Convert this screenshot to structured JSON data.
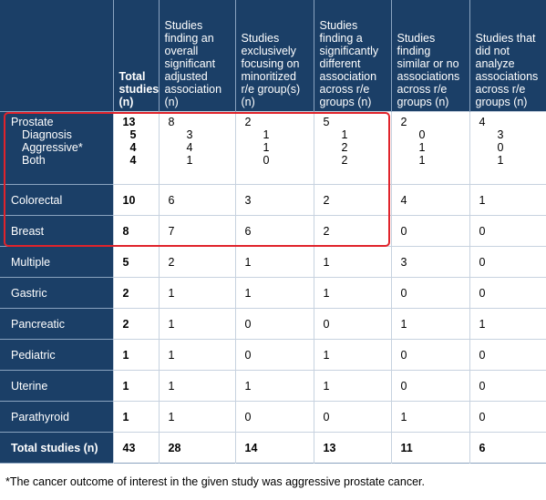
{
  "headers": [
    "",
    "Total studies (n)",
    "Studies finding an overall significant adjusted association (n)",
    "Studies exclusively focusing on minoritized r/e group(s) (n)",
    "Studies finding a significantly different association across r/e groups (n)",
    "Studies finding similar or no associations across r/e groups (n)",
    "Studies that did not analyze associations across r/e groups (n)"
  ],
  "prostate": {
    "label": "Prostate",
    "sub_labels": [
      "Diagnosis",
      "Aggressive*",
      "Both"
    ],
    "total": "13",
    "total_sub": [
      "5",
      "4",
      "4"
    ],
    "c2": "8",
    "c2_sub": [
      "3",
      "4",
      "1"
    ],
    "c3": "2",
    "c3_sub": [
      "1",
      "1",
      "0"
    ],
    "c4": "5",
    "c4_sub": [
      "1",
      "2",
      "2"
    ],
    "c5": "2",
    "c5_sub": [
      "0",
      "1",
      "1"
    ],
    "c6": "4",
    "c6_sub": [
      "3",
      "0",
      "1"
    ]
  },
  "rows": [
    {
      "label": "Colorectal",
      "total": "10",
      "c2": "6",
      "c3": "3",
      "c4": "2",
      "c5": "4",
      "c6": "1"
    },
    {
      "label": "Breast",
      "total": "8",
      "c2": "7",
      "c3": "6",
      "c4": "2",
      "c5": "0",
      "c6": "0"
    },
    {
      "label": "Multiple",
      "total": "5",
      "c2": "2",
      "c3": "1",
      "c4": "1",
      "c5": "3",
      "c6": "0"
    },
    {
      "label": "Gastric",
      "total": "2",
      "c2": "1",
      "c3": "1",
      "c4": "1",
      "c5": "0",
      "c6": "0"
    },
    {
      "label": "Pancreatic",
      "total": "2",
      "c2": "1",
      "c3": "0",
      "c4": "0",
      "c5": "1",
      "c6": "1"
    },
    {
      "label": "Pediatric",
      "total": "1",
      "c2": "1",
      "c3": "0",
      "c4": "1",
      "c5": "0",
      "c6": "0"
    },
    {
      "label": "Uterine",
      "total": "1",
      "c2": "1",
      "c3": "1",
      "c4": "1",
      "c5": "0",
      "c6": "0"
    },
    {
      "label": "Parathyroid",
      "total": "1",
      "c2": "1",
      "c3": "0",
      "c4": "0",
      "c5": "1",
      "c6": "0"
    }
  ],
  "totals": {
    "label": "Total studies (n)",
    "total": "43",
    "c2": "28",
    "c3": "14",
    "c4": "13",
    "c5": "11",
    "c6": "6"
  },
  "footnote": "*The cancer outcome of interest in the given study was aggressive prostate cancer.",
  "colors": {
    "header_bg": "#1b3f67",
    "highlight": "#e0232b"
  }
}
